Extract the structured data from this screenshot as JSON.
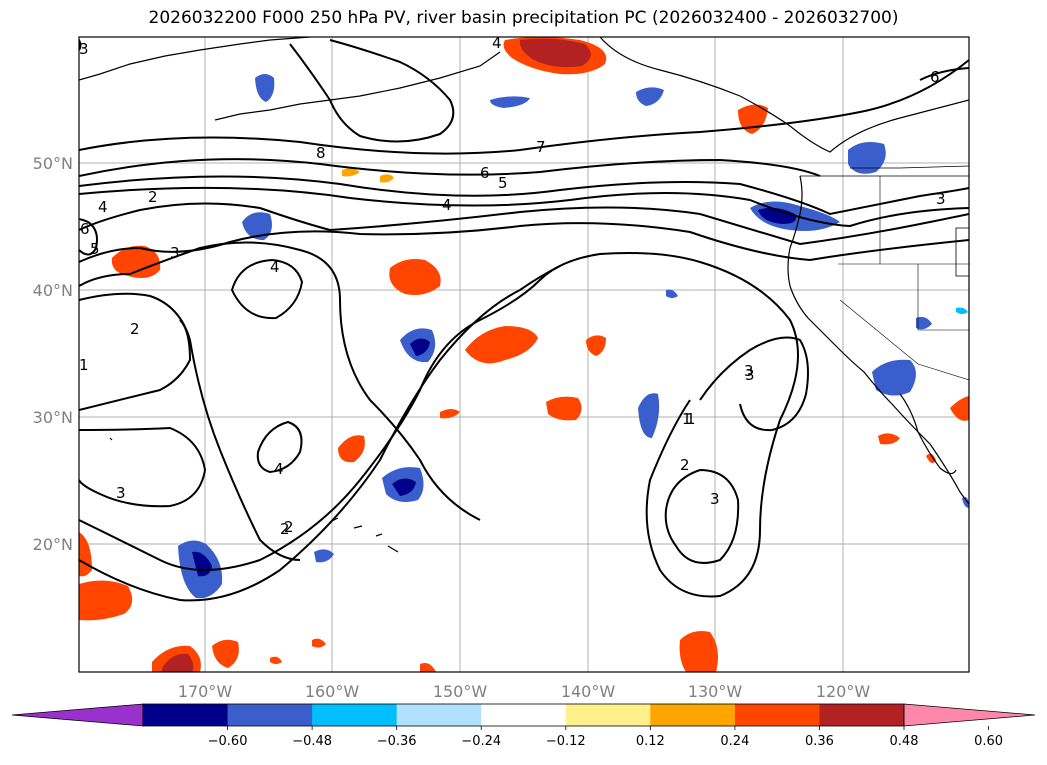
{
  "title": "2026032200 F000 250 hPa PV, river basin precipitation PC (2026032400 - 2026032700)",
  "latitude_labels": [
    "50°N",
    "40°N",
    "30°N",
    "20°N"
  ],
  "longitude_labels": [
    "170°W",
    "160°W",
    "150°W",
    "140°W",
    "130°W",
    "120°W"
  ],
  "contour_labels": [
    "3",
    "2",
    "4",
    "6",
    "5",
    "3",
    "2",
    "1",
    "8",
    "7",
    "6",
    "5",
    "4",
    "4",
    "3",
    "6",
    "3",
    "4",
    "3",
    "2",
    "1",
    "2",
    "3",
    "3",
    "2",
    "1",
    "4"
  ],
  "colorbar": {
    "ticks": [
      "−0.60",
      "−0.48",
      "−0.36",
      "−0.24",
      "−0.12",
      "0.12",
      "0.24",
      "0.36",
      "0.48",
      "0.60"
    ],
    "colors": [
      "#9932cc",
      "#00008b",
      "#3a5fcd",
      "#00bfff",
      "#b0e2ff",
      "#ffffff",
      "#fff08c",
      "#ffa500",
      "#ff4500",
      "#b22222",
      "#ff88aa"
    ]
  }
}
